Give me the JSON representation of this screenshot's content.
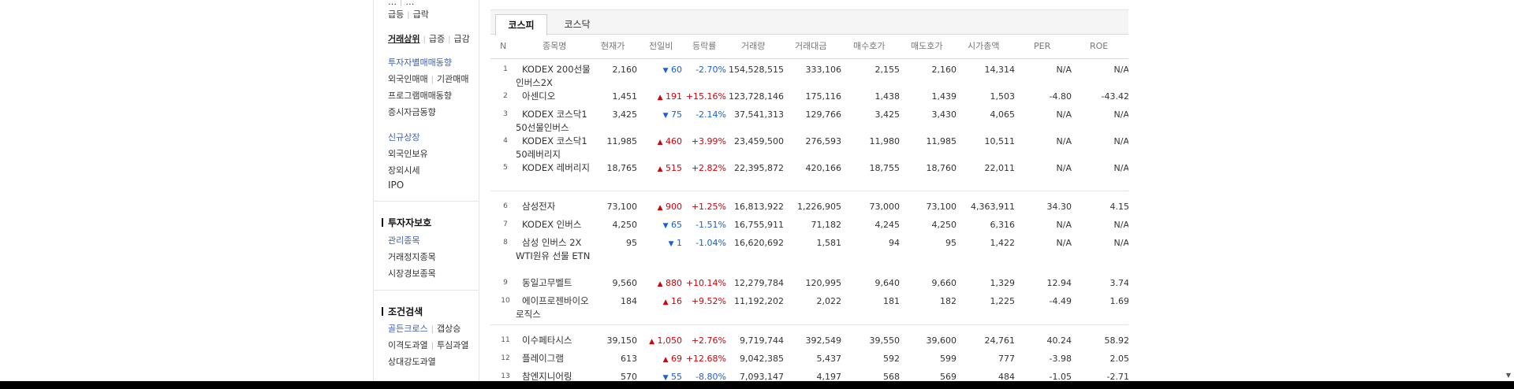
{
  "sidebar": {
    "cut_top": [
      "…",
      "…"
    ],
    "surge_links": [
      "급등",
      "급락"
    ],
    "trading_links": [
      "거래상위",
      "급증",
      "급감"
    ],
    "investor_heading": "투자자별매매동향",
    "investor_links": [
      "외국인매매",
      "기관매매"
    ],
    "program": "프로그램매매동향",
    "deposit": "증시자금동향",
    "new_listing": "신규상장",
    "foreign_holding": "외국인보유",
    "offhours": "장외시세",
    "ipo": "IPO",
    "protect_heading": "투자자보호",
    "managed": "관리종목",
    "suspended": "거래정지종목",
    "warning": "시장경보종목",
    "condition_heading": "조건검색",
    "cross_links": [
      "골든크로스",
      "갭상승"
    ],
    "disparity_links": [
      "이격도과열",
      "투심과열"
    ],
    "rsi": "상대강도과열"
  },
  "tabs": [
    "코스피",
    "코스닥"
  ],
  "columns": [
    "N",
    "종목명",
    "현재가",
    "전일비",
    "등락률",
    "거래량",
    "거래대금",
    "매수호가",
    "매도호가",
    "시가총액",
    "PER",
    "ROE"
  ],
  "rows": [
    {
      "n": "1",
      "name": "KODEX 200선물인버스2X",
      "price": "2,160",
      "dir": "down",
      "diff": "60",
      "rate": "-2.70%",
      "volume": "154,528,515",
      "amount": "333,106",
      "bid": "2,155",
      "ask": "2,160",
      "cap": "14,314",
      "per": "N/A",
      "roe": "N/A"
    },
    {
      "n": "2",
      "name": "아센디오",
      "price": "1,451",
      "dir": "up",
      "diff": "191",
      "rate": "+15.16%",
      "volume": "123,728,146",
      "amount": "175,116",
      "bid": "1,438",
      "ask": "1,439",
      "cap": "1,503",
      "per": "-4.80",
      "roe": "-43.42"
    },
    {
      "n": "3",
      "name": "KODEX 코스닥150선물인버스",
      "price": "3,425",
      "dir": "down",
      "diff": "75",
      "rate": "-2.14%",
      "volume": "37,541,313",
      "amount": "129,766",
      "bid": "3,425",
      "ask": "3,430",
      "cap": "4,065",
      "per": "N/A",
      "roe": "N/A"
    },
    {
      "n": "4",
      "name": "KODEX 코스닥150레버리지",
      "price": "11,985",
      "dir": "up",
      "diff": "460",
      "rate": "+3.99%",
      "volume": "23,459,500",
      "amount": "276,593",
      "bid": "11,980",
      "ask": "11,985",
      "cap": "10,511",
      "per": "N/A",
      "roe": "N/A"
    },
    {
      "n": "5",
      "name": "KODEX 레버리지",
      "price": "18,765",
      "dir": "up",
      "diff": "515",
      "rate": "+2.82%",
      "volume": "22,395,872",
      "amount": "420,166",
      "bid": "18,755",
      "ask": "18,760",
      "cap": "22,011",
      "per": "N/A",
      "roe": "N/A"
    },
    {
      "n": "6",
      "name": "삼성전자",
      "price": "73,100",
      "dir": "up",
      "diff": "900",
      "rate": "+1.25%",
      "volume": "16,813,922",
      "amount": "1,226,905",
      "bid": "73,000",
      "ask": "73,100",
      "cap": "4,363,911",
      "per": "34.30",
      "roe": "4.15"
    },
    {
      "n": "7",
      "name": "KODEX 인버스",
      "price": "4,250",
      "dir": "down",
      "diff": "65",
      "rate": "-1.51%",
      "volume": "16,755,911",
      "amount": "71,182",
      "bid": "4,245",
      "ask": "4,250",
      "cap": "6,316",
      "per": "N/A",
      "roe": "N/A"
    },
    {
      "n": "8",
      "name": "삼성 인버스 2X WTI원유 선물 ETN",
      "price": "95",
      "dir": "down",
      "diff": "1",
      "rate": "-1.04%",
      "volume": "16,620,692",
      "amount": "1,581",
      "bid": "94",
      "ask": "95",
      "cap": "1,422",
      "per": "N/A",
      "roe": "N/A"
    },
    {
      "n": "9",
      "name": "동일고무벨트",
      "price": "9,560",
      "dir": "up",
      "diff": "880",
      "rate": "+10.14%",
      "volume": "12,279,784",
      "amount": "120,995",
      "bid": "9,640",
      "ask": "9,660",
      "cap": "1,329",
      "per": "12.94",
      "roe": "3.74"
    },
    {
      "n": "10",
      "name": "에이프로젠바이오로직스",
      "price": "184",
      "dir": "up",
      "diff": "16",
      "rate": "+9.52%",
      "volume": "11,192,202",
      "amount": "2,022",
      "bid": "181",
      "ask": "182",
      "cap": "1,225",
      "per": "-4.49",
      "roe": "1.69"
    },
    {
      "n": "11",
      "name": "이수페타시스",
      "price": "39,150",
      "dir": "up",
      "diff": "1,050",
      "rate": "+2.76%",
      "volume": "9,719,744",
      "amount": "392,549",
      "bid": "39,550",
      "ask": "39,600",
      "cap": "24,761",
      "per": "40.24",
      "roe": "58.92"
    },
    {
      "n": "12",
      "name": "플레이그램",
      "price": "613",
      "dir": "up",
      "diff": "69",
      "rate": "+12.68%",
      "volume": "9,042,385",
      "amount": "5,437",
      "bid": "592",
      "ask": "599",
      "cap": "777",
      "per": "-3.98",
      "roe": "2.05"
    },
    {
      "n": "13",
      "name": "참엔지니어링",
      "price": "570",
      "dir": "down",
      "diff": "55",
      "rate": "-8.80%",
      "volume": "7,093,147",
      "amount": "4,197",
      "bid": "568",
      "ask": "569",
      "cap": "484",
      "per": "-1.05",
      "roe": "-2.71"
    }
  ],
  "colors": {
    "up": "#d4000a",
    "down": "#1a5fd6",
    "sidebar_link": "#3e61b3"
  },
  "icons": {
    "up": "triangle-up-icon",
    "down": "triangle-down-icon",
    "scroll": "scroll-down-arrow-icon"
  }
}
